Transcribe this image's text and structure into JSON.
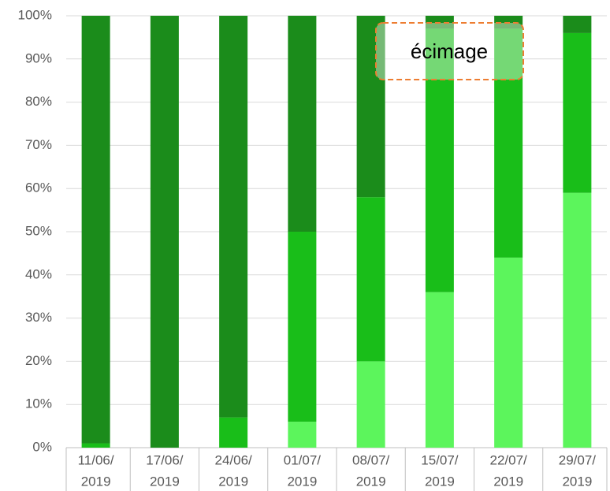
{
  "chart_data": {
    "type": "bar",
    "stacked": true,
    "categories": [
      [
        "11/06/",
        "2019"
      ],
      [
        "17/06/",
        "2019"
      ],
      [
        "24/06/",
        "2019"
      ],
      [
        "01/07/",
        "2019"
      ],
      [
        "08/07/",
        "2019"
      ],
      [
        "15/07/",
        "2019"
      ],
      [
        "22/07/",
        "2019"
      ],
      [
        "29/07/",
        "2019"
      ]
    ],
    "series": [
      {
        "color": "#5cf55c",
        "values": [
          0,
          0,
          0,
          6,
          20,
          36,
          44,
          59
        ]
      },
      {
        "color": "#19be19",
        "values": [
          1,
          0,
          7,
          44,
          38,
          61,
          53,
          37
        ]
      },
      {
        "color": "#1b8c1b",
        "values": [
          99,
          100,
          93,
          50,
          42,
          3,
          3,
          4
        ]
      }
    ],
    "ylim": [
      0,
      100
    ],
    "yticks": [
      {
        "value": 0,
        "label": "0%"
      },
      {
        "value": 10,
        "label": "10%"
      },
      {
        "value": 20,
        "label": "20%"
      },
      {
        "value": 30,
        "label": "30%"
      },
      {
        "value": 40,
        "label": "40%"
      },
      {
        "value": 50,
        "label": "50%"
      },
      {
        "value": 60,
        "label": "60%"
      },
      {
        "value": 70,
        "label": "70%"
      },
      {
        "value": 80,
        "label": "80%"
      },
      {
        "value": 90,
        "label": "90%"
      },
      {
        "value": 100,
        "label": "100%"
      }
    ],
    "grid": true,
    "annotation": "écimage"
  }
}
